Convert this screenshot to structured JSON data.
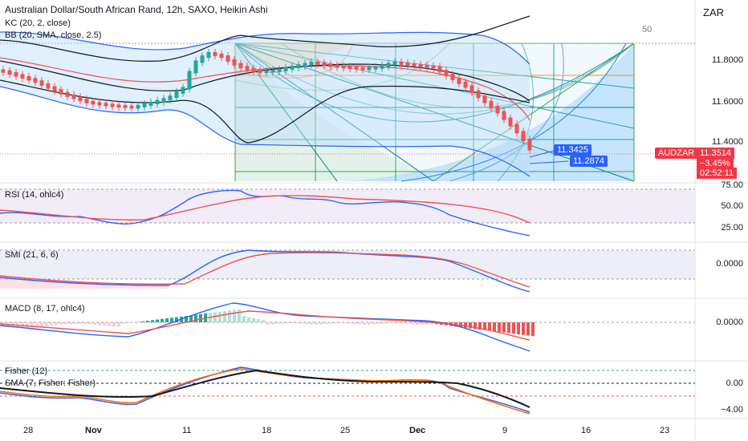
{
  "header": {
    "title": "Australian Dollar/South African Rand, 12h, SAXO, Heikin Ashi",
    "currency": "ZAR",
    "kc_label": "KC (20, 2, close)",
    "bb_label": "BB (20, SMA, close, 2.5)",
    "fan_level": "50"
  },
  "price_axis": {
    "ticks": [
      "11.8000",
      "11.6000",
      "11.4000"
    ],
    "symbol_tag": "AUDZAR",
    "last_price": "11.3514",
    "change": "−3.45%",
    "countdown": "02:52:11",
    "marker_a": "11.3425",
    "marker_b": "11.2874"
  },
  "panes": {
    "rsi": {
      "label": "RSI (14, ohlc4)",
      "ticks": [
        "75.00",
        "50.00",
        "25.00"
      ]
    },
    "smi": {
      "label": "SMI (21, 6, 6)",
      "ticks": [
        "0.0000"
      ]
    },
    "macd": {
      "label": "MACD (8, 17, ohlc4)",
      "ticks": [
        "0.0000"
      ]
    },
    "fisher": {
      "label": "Fisher (12)",
      "label2": "SMA (7, Fisher: Fisher)",
      "ticks": [
        "0.00",
        "−4.00"
      ]
    }
  },
  "time_axis": {
    "ticks": [
      "28",
      "Nov",
      "11",
      "18",
      "25",
      "Dec",
      "9",
      "16",
      "23"
    ]
  },
  "colors": {
    "up": "#26a69a",
    "down": "#ef5350",
    "blue": "#2962ff",
    "red": "#f23645",
    "black": "#131722",
    "fan_fill": "#bbdefb",
    "fan_line": "#1e88e5"
  }
}
